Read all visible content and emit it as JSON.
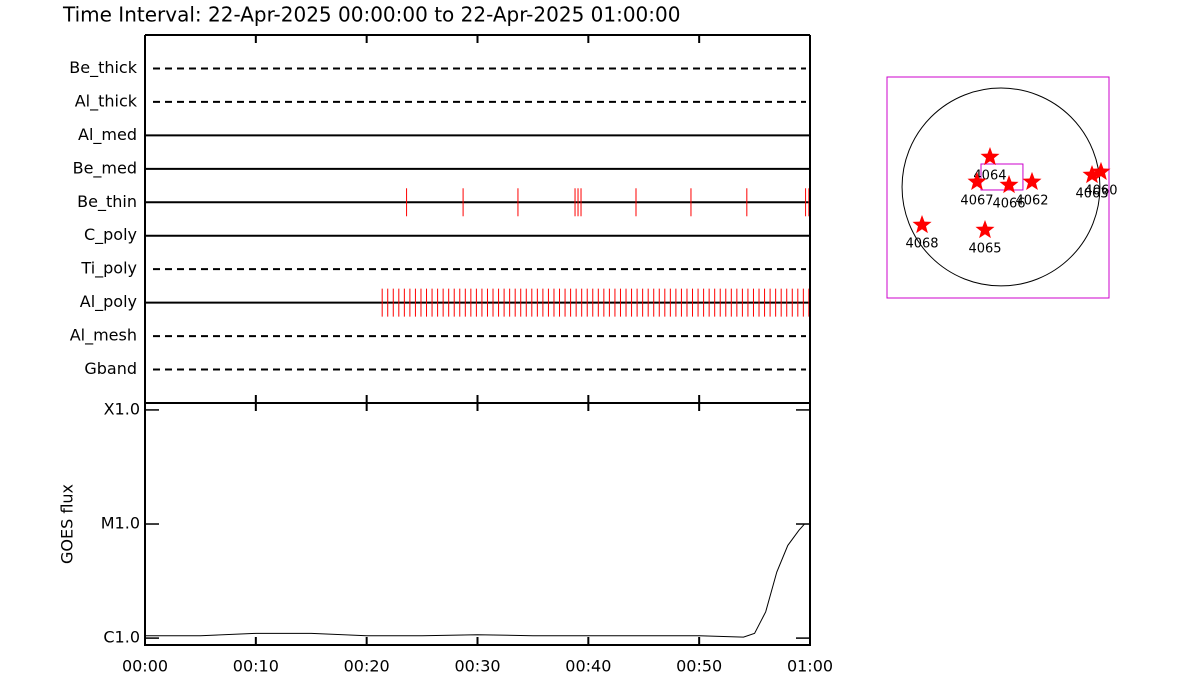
{
  "title": "Time Interval: 22-Apr-2025 00:00:00 to 22-Apr-2025 01:00:00",
  "chart_data": [
    {
      "type": "event",
      "categories": [
        "Be_thick",
        "Al_thick",
        "Al_med",
        "Be_med",
        "Be_thin",
        "C_poly",
        "Ti_poly",
        "Al_poly",
        "Al_mesh",
        "Gband"
      ],
      "line_styles": [
        "dashed",
        "dashed",
        "solid",
        "solid",
        "solid",
        "solid",
        "dashed",
        "solid",
        "dashed",
        "dashed"
      ],
      "events": [
        [],
        [],
        [],
        [],
        [
          23.6,
          28.7,
          33.65,
          38.8,
          39.07,
          39.34,
          44.3,
          49.26,
          54.3,
          59.6,
          59.9
        ],
        [],
        [],
        [
          21.4,
          21.9,
          22.4,
          22.9,
          23.4,
          23.9,
          24.4,
          24.9,
          25.4,
          25.9,
          26.4,
          26.9,
          27.4,
          27.9,
          28.4,
          28.9,
          29.4,
          29.9,
          30.4,
          30.9,
          31.4,
          31.9,
          32.4,
          32.9,
          33.4,
          33.9,
          34.4,
          34.9,
          35.4,
          35.9,
          36.4,
          36.9,
          37.4,
          37.9,
          38.4,
          38.9,
          39.4,
          39.9,
          40.4,
          40.9,
          41.4,
          41.9,
          42.4,
          42.9,
          43.4,
          43.9,
          44.4,
          44.9,
          45.4,
          45.9,
          46.4,
          46.9,
          47.4,
          47.9,
          48.4,
          48.9,
          49.4,
          49.9,
          50.4,
          50.9,
          51.4,
          51.9,
          52.4,
          52.9,
          53.4,
          53.9,
          54.4,
          54.9,
          55.4,
          55.9,
          56.4,
          56.9,
          57.4,
          57.9,
          58.4,
          58.9,
          59.4,
          59.9
        ],
        [],
        []
      ],
      "color": "#ff0000",
      "xlim": [
        0,
        60
      ]
    },
    {
      "type": "line",
      "ylabel": "GOES flux",
      "x": [
        0,
        5,
        10,
        15,
        20,
        25,
        30,
        35,
        40,
        45,
        50,
        54,
        55,
        56,
        57,
        58,
        59,
        59.5,
        60
      ],
      "values": [
        1.05e-06,
        1.05e-06,
        1.1e-06,
        1.1e-06,
        1.05e-06,
        1.05e-06,
        1.07e-06,
        1.05e-06,
        1.05e-06,
        1.05e-06,
        1.05e-06,
        1.02e-06,
        1.1e-06,
        1.7e-06,
        3.8e-06,
        6.5e-06,
        8.8e-06,
        1e-05,
        1e-05
      ],
      "color": "#000000",
      "log_y": true,
      "xlim": [
        0,
        60
      ],
      "xticks": [
        {
          "value": 0,
          "label": "00:00"
        },
        {
          "value": 10,
          "label": "00:10"
        },
        {
          "value": 20,
          "label": "00:20"
        },
        {
          "value": 30,
          "label": "00:30"
        },
        {
          "value": 40,
          "label": "00:40"
        },
        {
          "value": 50,
          "label": "00:50"
        },
        {
          "value": 60,
          "label": "01:00"
        }
      ],
      "ylim": [
        8.7e-07,
        0.000115
      ],
      "yticks": [
        {
          "value": 1e-06,
          "label": "C1.0"
        },
        {
          "value": 1e-05,
          "label": "M1.0"
        },
        {
          "value": 0.0001,
          "label": "X1.0"
        }
      ]
    },
    {
      "type": "map",
      "xlim": [
        -1106,
        1048
      ],
      "ylim": [
        -1077,
        1067
      ],
      "sun_radius": 960,
      "frame_color": "#cc00cc",
      "fov": {
        "xlim": [
          -194,
          213
        ],
        "ylim": [
          -29,
          223
        ]
      },
      "color": "#ff0000",
      "points": [
        {
          "label": "4064",
          "x": -107,
          "y": 291
        },
        {
          "label": "4067",
          "x": -233,
          "y": 49
        },
        {
          "label": "4066",
          "x": 78,
          "y": 19
        },
        {
          "label": "4062",
          "x": 301,
          "y": 49
        },
        {
          "label": "4063",
          "x": 883,
          "y": 116
        },
        {
          "label": "4060",
          "x": 970,
          "y": 146
        },
        {
          "label": "4068",
          "x": -766,
          "y": -369
        },
        {
          "label": "4065",
          "x": -155,
          "y": -417
        }
      ]
    }
  ]
}
